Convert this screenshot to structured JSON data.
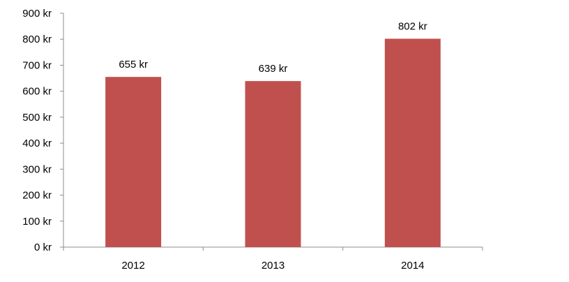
{
  "chart_data": {
    "type": "bar",
    "categories": [
      "2012",
      "2013",
      "2014"
    ],
    "values": [
      655,
      639,
      802
    ],
    "value_labels": [
      "655 kr",
      "639 kr",
      "802 kr"
    ],
    "ylim": [
      0,
      900
    ],
    "y_ticks": [
      0,
      100,
      200,
      300,
      400,
      500,
      600,
      700,
      800,
      900
    ],
    "y_tick_labels": [
      "0 kr",
      "100 kr",
      "200 kr",
      "300 kr",
      "400 kr",
      "500 kr",
      "600 kr",
      "700 kr",
      "800 kr",
      "900 kr"
    ],
    "title": "",
    "xlabel": "",
    "ylabel": "",
    "grid": false,
    "legend": "none",
    "bar_color": "#c0504d"
  }
}
